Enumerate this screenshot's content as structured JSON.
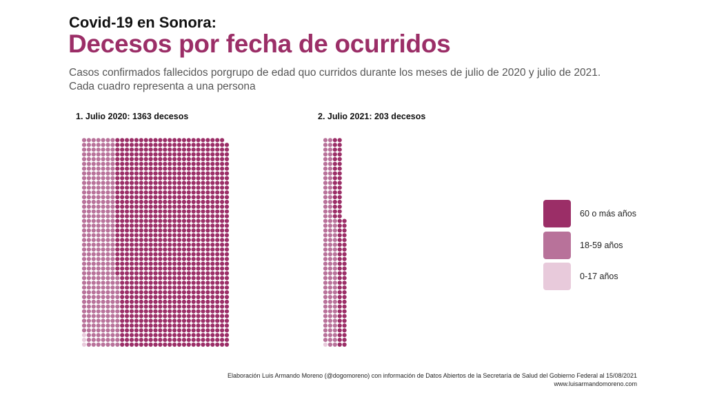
{
  "header": {
    "title_line1": "Covid-19 en Sonora:",
    "title_line2": "Decesos por fecha de ocurridos",
    "subtitle_line1": "Casos confirmados fallecidos porgrupo de edad quo curridos durante los meses de julio de 2020 y julio de 2021.",
    "subtitle_line2": "Cada cuadro representa a una persona"
  },
  "chart_data": [
    {
      "type": "waffle",
      "title": "1. Julio 2020: 1363 decesos",
      "total": 1363,
      "series": [
        {
          "name": "60 o más años",
          "value": 1040,
          "color": "#9b2e67"
        },
        {
          "name": "18-59 años",
          "value": 320,
          "color": "#b8729a"
        },
        {
          "name": "0-17 años",
          "value": 3,
          "color": "#e8cadb"
        }
      ]
    },
    {
      "type": "waffle",
      "title": "2. Julio 2021: 203 decesos",
      "total": 203,
      "series": [
        {
          "name": "60 o más años",
          "value": 88,
          "color": "#9b2e67"
        },
        {
          "name": "18-59 años",
          "value": 114,
          "color": "#b8729a"
        },
        {
          "name": "0-17 años",
          "value": 1,
          "color": "#e8cadb"
        }
      ]
    }
  ],
  "legend": [
    {
      "label": "60 o más años",
      "color": "#9b2e67"
    },
    {
      "label": "18-59 años",
      "color": "#b8729a"
    },
    {
      "label": "0-17 años",
      "color": "#e8cadb"
    }
  ],
  "footer": {
    "credit": "Elaboración Luis Armando Moreno (@dogomoreno) con información de Datos Abiertos de la Secretaría de Salud del Gobierno Federal al 15/08/2021",
    "website": "www.luisarmandomoreno.com"
  }
}
